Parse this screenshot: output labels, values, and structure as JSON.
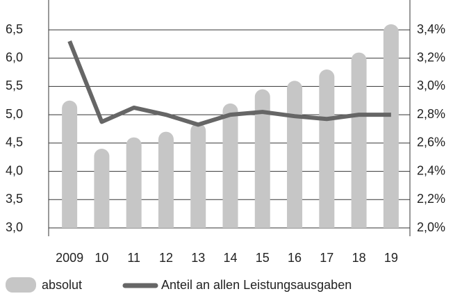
{
  "chart_data": {
    "type": "bar-line",
    "categories": [
      "2009",
      "10",
      "11",
      "12",
      "13",
      "14",
      "15",
      "16",
      "17",
      "18",
      "19"
    ],
    "series": [
      {
        "name": "absolut",
        "type": "bar",
        "color": "#c6c6c6",
        "values": [
          5.25,
          4.4,
          4.6,
          4.7,
          4.85,
          5.2,
          5.45,
          5.6,
          5.8,
          6.1,
          6.6
        ]
      },
      {
        "name": "Anteil an allen Leistungsausgaben",
        "type": "line",
        "axis": "y2",
        "color": "#666666",
        "values": [
          3.32,
          2.75,
          2.85,
          2.8,
          2.73,
          2.8,
          2.82,
          2.79,
          2.77,
          2.8,
          2.8
        ]
      }
    ],
    "ylim": [
      3.0,
      6.5
    ],
    "yticks": [
      {
        "value": 3.0,
        "label": "3,0"
      },
      {
        "value": 3.5,
        "label": "3,5"
      },
      {
        "value": 4.0,
        "label": "4,0"
      },
      {
        "value": 4.5,
        "label": "4,5"
      },
      {
        "value": 5.0,
        "label": "5,0"
      },
      {
        "value": 5.5,
        "label": "5,5"
      },
      {
        "value": 6.0,
        "label": "6,0"
      },
      {
        "value": 6.5,
        "label": "6,5"
      }
    ],
    "y2lim": [
      2.0,
      3.4
    ],
    "y2ticks": [
      {
        "value": 2.0,
        "label": "2,0%"
      },
      {
        "value": 2.2,
        "label": "2,2%"
      },
      {
        "value": 2.4,
        "label": "2,4%"
      },
      {
        "value": 2.6,
        "label": "2,6%"
      },
      {
        "value": 2.8,
        "label": "2,8%"
      },
      {
        "value": 3.0,
        "label": "3,0%"
      },
      {
        "value": 3.2,
        "label": "3,2%"
      },
      {
        "value": 3.4,
        "label": "3,4%"
      }
    ],
    "grid": true
  }
}
